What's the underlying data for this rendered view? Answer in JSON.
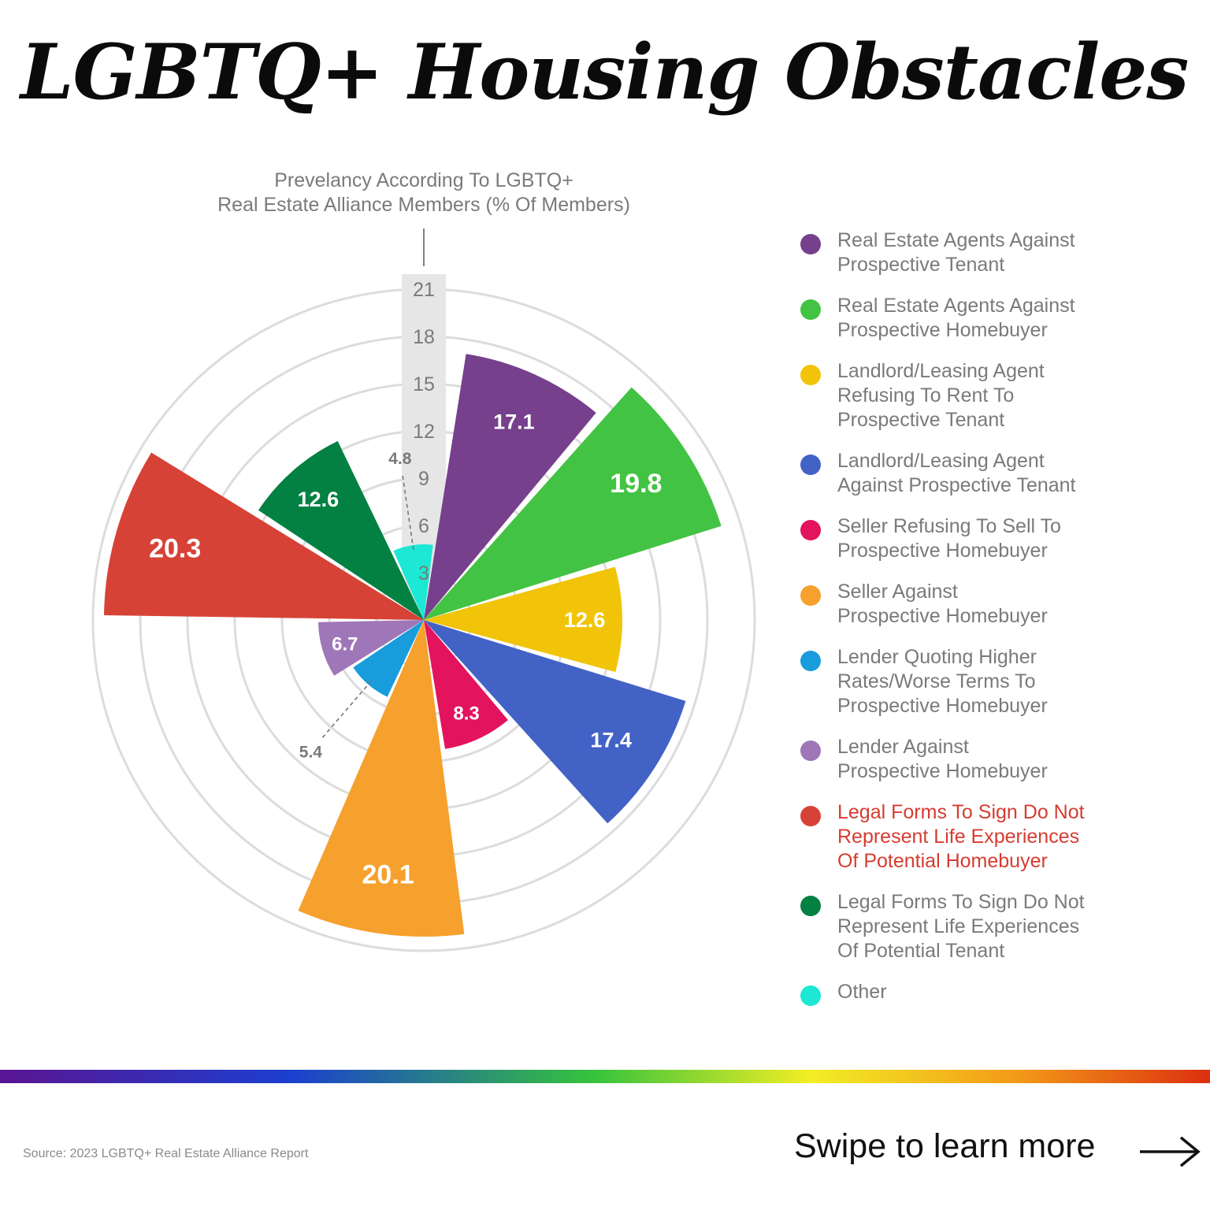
{
  "title": "LGBTQ+ Housing Obstacles",
  "chart_data": {
    "type": "polar-bar",
    "title": "Prevelancy According To LGBTQ+ Real Estate Alliance Members (% Of Members)",
    "subtitle_lines": [
      "Prevelancy According To LGBTQ+",
      "Real Estate Alliance Members (% Of Members)"
    ],
    "radial_ticks": [
      "3",
      "6",
      "9",
      "12",
      "15",
      "18",
      "21"
    ],
    "rmax": 21,
    "series": [
      {
        "name": "Real Estate Agents Against Prospective Tenant",
        "legend_lines": [
          "Real Estate Agents Against",
          "Prospective Tenant"
        ],
        "value": 17.1,
        "label": "17.1",
        "color": "#76408c"
      },
      {
        "name": "Real Estate Agents Against Prospective Homebuyer",
        "legend_lines": [
          "Real Estate Agents Against",
          "Prospective Homebuyer"
        ],
        "value": 19.8,
        "label": "19.8",
        "color": "#43c343"
      },
      {
        "name": "Landlord/Leasing Agent Refusing To Rent To Prospective Tenant",
        "legend_lines": [
          "Landlord/Leasing Agent",
          "Refusing To Rent To",
          "Prospective Tenant"
        ],
        "value": 12.6,
        "label": "12.6",
        "color": "#f1c40a"
      },
      {
        "name": "Landlord/Leasing Agent Against Prospective Tenant",
        "legend_lines": [
          "Landlord/Leasing Agent",
          "Against Prospective Tenant"
        ],
        "value": 17.4,
        "label": "17.4",
        "color": "#4262c6"
      },
      {
        "name": "Seller Refusing To Sell To Prospective Homebuyer",
        "legend_lines": [
          "Seller Refusing To Sell To",
          "Prospective Homebuyer"
        ],
        "value": 8.3,
        "label": "8.3",
        "color": "#e3135e"
      },
      {
        "name": "Seller Against Prospective Homebuyer",
        "legend_lines": [
          "Seller Against",
          "Prospective Homebuyer"
        ],
        "value": 20.1,
        "label": "20.1",
        "color": "#f6a02e"
      },
      {
        "name": "Lender Quoting Higher Rates/Worse Terms To Prospective Homebuyer",
        "legend_lines": [
          "Lender Quoting Higher",
          "Rates/Worse Terms To",
          "Prospective Homebuyer"
        ],
        "value": 5.4,
        "label": "5.4",
        "color": "#199cdb"
      },
      {
        "name": "Lender Against Prospective Homebuyer",
        "legend_lines": [
          "Lender Against",
          "Prospective Homebuyer"
        ],
        "value": 6.7,
        "label": "6.7",
        "color": "#9f76b8"
      },
      {
        "name": "Legal Forms To Sign Do Not Represent Life Experiences Of Potential Homebuyer",
        "legend_lines": [
          "Legal Forms To Sign Do Not",
          "Represent Life Experiences",
          "Of Potential Homebuyer"
        ],
        "value": 20.3,
        "label": "20.3",
        "color": "#d74237",
        "highlight": true
      },
      {
        "name": "Legal Forms To Sign Do Not Represent Life Experiences Of Potential Tenant",
        "legend_lines": [
          "Legal Forms To Sign Do Not",
          "Represent Life Experiences",
          "Of Potential Tenant"
        ],
        "value": 12.6,
        "label": "12.6",
        "color": "#038142"
      },
      {
        "name": "Other",
        "legend_lines": [
          "Other"
        ],
        "value": 4.8,
        "label": "4.8",
        "color": "#1ce8d5"
      }
    ]
  },
  "footer": {
    "source": "Source: 2023 LGBTQ+ Real Estate Alliance Report",
    "swipe": "Swipe to learn more",
    "rainbow_colors": [
      "#5a1592",
      "#1b3fd0",
      "#35c33c",
      "#f2ee24",
      "#f39a18",
      "#dc2f10"
    ],
    "arrow_icon": "right-arrow-icon"
  }
}
